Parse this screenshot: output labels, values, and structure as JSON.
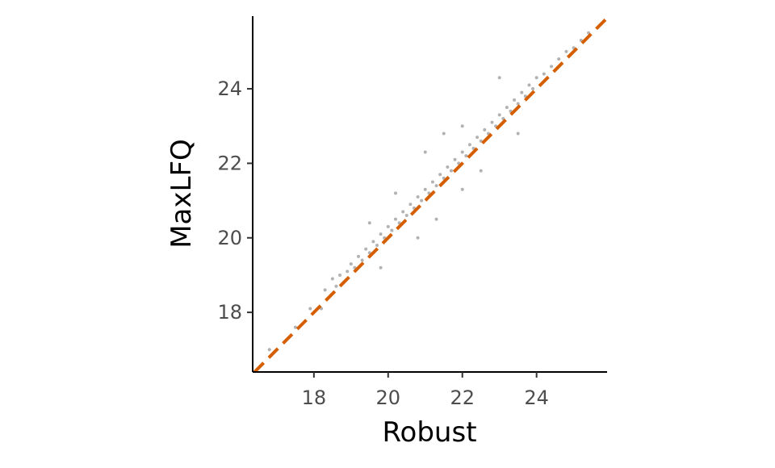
{
  "chart_data": {
    "type": "scatter",
    "title": "",
    "xlabel": "Robust",
    "ylabel": "MaxLFQ",
    "xlim": [
      16.35,
      25.9
    ],
    "ylim": [
      16.4,
      25.95
    ],
    "x_ticks": [
      18,
      20,
      22,
      24
    ],
    "y_ticks": [
      18,
      20,
      22,
      24
    ],
    "x_tick_labels": [
      "18",
      "20",
      "22",
      "24"
    ],
    "y_tick_labels": [
      "18",
      "20",
      "22",
      "24"
    ],
    "grid": false,
    "legend": "none",
    "reference_line": {
      "type": "identity",
      "slope": 1,
      "intercept": 0,
      "style": "dashed",
      "color": "#D55E00"
    },
    "point_color": "#000000",
    "point_alpha": 0.3,
    "series": [
      {
        "values": [
          [
            16.8,
            17.0
          ],
          [
            17.5,
            17.6
          ],
          [
            17.9,
            18.1
          ],
          [
            18.2,
            18.1
          ],
          [
            18.3,
            18.6
          ],
          [
            18.5,
            18.9
          ],
          [
            18.6,
            18.7
          ],
          [
            18.7,
            19.0
          ],
          [
            18.8,
            18.8
          ],
          [
            18.9,
            19.1
          ],
          [
            19.0,
            19.3
          ],
          [
            19.1,
            19.2
          ],
          [
            19.2,
            19.5
          ],
          [
            19.3,
            19.4
          ],
          [
            19.4,
            19.7
          ],
          [
            19.5,
            19.6
          ],
          [
            19.6,
            19.9
          ],
          [
            19.7,
            19.8
          ],
          [
            19.8,
            20.1
          ],
          [
            19.9,
            20.0
          ],
          [
            20.0,
            20.3
          ],
          [
            20.1,
            20.2
          ],
          [
            20.2,
            20.5
          ],
          [
            20.3,
            20.4
          ],
          [
            20.4,
            20.7
          ],
          [
            20.5,
            20.6
          ],
          [
            20.6,
            20.9
          ],
          [
            20.7,
            20.8
          ],
          [
            20.8,
            21.1
          ],
          [
            20.9,
            21.0
          ],
          [
            21.0,
            21.3
          ],
          [
            21.1,
            21.2
          ],
          [
            21.2,
            21.5
          ],
          [
            21.3,
            21.4
          ],
          [
            21.4,
            21.7
          ],
          [
            21.5,
            21.6
          ],
          [
            21.6,
            21.9
          ],
          [
            21.7,
            21.8
          ],
          [
            21.8,
            22.1
          ],
          [
            21.9,
            22.0
          ],
          [
            22.0,
            22.3
          ],
          [
            22.1,
            22.2
          ],
          [
            22.2,
            22.5
          ],
          [
            22.3,
            22.4
          ],
          [
            22.4,
            22.7
          ],
          [
            22.5,
            22.6
          ],
          [
            22.6,
            22.9
          ],
          [
            22.7,
            22.8
          ],
          [
            22.8,
            23.1
          ],
          [
            22.9,
            23.0
          ],
          [
            23.0,
            23.3
          ],
          [
            23.1,
            23.2
          ],
          [
            23.2,
            23.5
          ],
          [
            23.3,
            23.4
          ],
          [
            23.4,
            23.7
          ],
          [
            23.5,
            23.6
          ],
          [
            23.6,
            23.9
          ],
          [
            23.7,
            23.8
          ],
          [
            23.8,
            24.1
          ],
          [
            23.9,
            24.0
          ],
          [
            24.0,
            24.3
          ],
          [
            24.2,
            24.4
          ],
          [
            24.4,
            24.6
          ],
          [
            24.6,
            24.8
          ],
          [
            24.8,
            25.0
          ],
          [
            25.0,
            25.1
          ],
          [
            25.2,
            25.3
          ],
          [
            25.4,
            25.5
          ],
          [
            21.0,
            22.3
          ],
          [
            20.2,
            21.2
          ],
          [
            22.0,
            23.0
          ],
          [
            19.5,
            20.4
          ],
          [
            21.5,
            22.8
          ],
          [
            23.0,
            24.3
          ],
          [
            20.8,
            20.0
          ],
          [
            22.5,
            21.8
          ],
          [
            21.3,
            20.5
          ],
          [
            23.5,
            22.8
          ],
          [
            19.8,
            19.2
          ],
          [
            22.0,
            21.3
          ]
        ]
      }
    ]
  }
}
